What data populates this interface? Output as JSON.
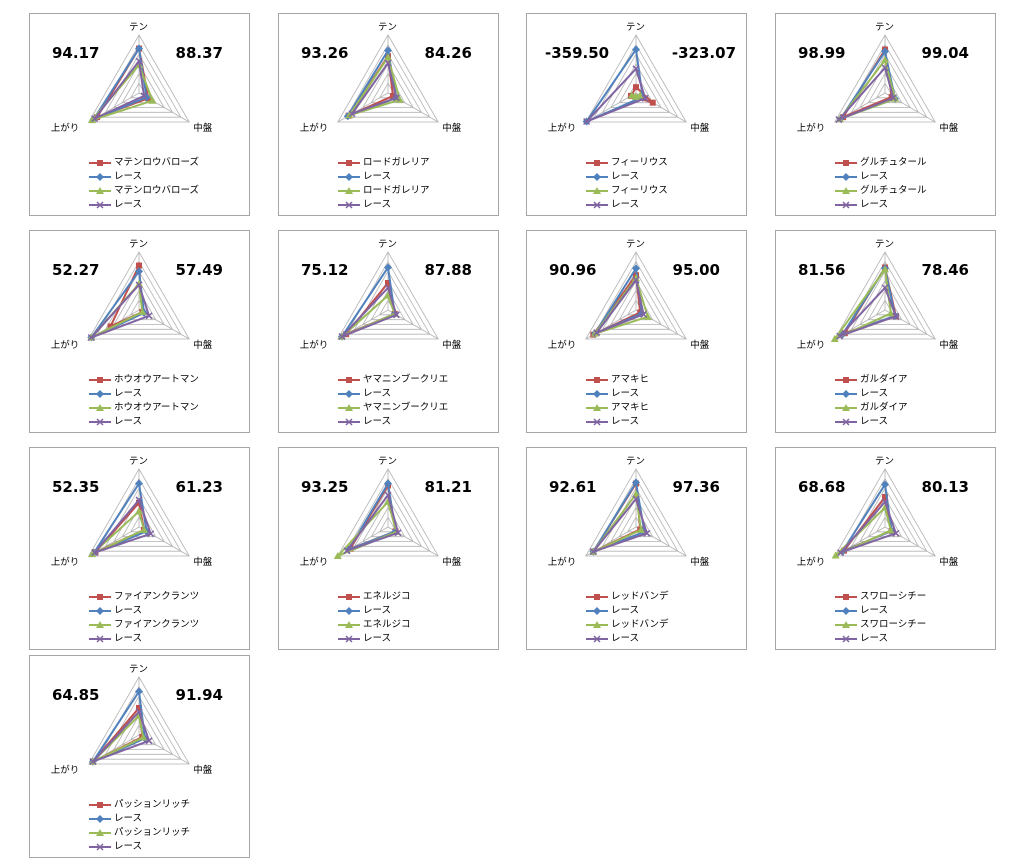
{
  "colors": {
    "red": "#c0504d",
    "blue": "#4f81bd",
    "green": "#9bbb59",
    "purple": "#8064a2",
    "grid": "#b3b3b3"
  },
  "axes": [
    "テン",
    "中盤",
    "上がり"
  ],
  "chart_data": [
    {
      "type": "radar",
      "left_value": "94.17",
      "right_value": "88.37",
      "axes": [
        "テン",
        "中盤",
        "上がり"
      ],
      "rmax": 6,
      "series": [
        {
          "name": "マテンロウバローズ",
          "marker": "square",
          "color": "#c0504d",
          "values": [
            4.6,
            1.1,
            5.0
          ]
        },
        {
          "name": "レース",
          "marker": "diamond",
          "color": "#4f81bd",
          "values": [
            4.6,
            0.9,
            5.4
          ]
        },
        {
          "name": "マテンロウバローズ",
          "marker": "triangle",
          "color": "#9bbb59",
          "values": [
            2.9,
            1.6,
            5.6
          ]
        },
        {
          "name": "レース",
          "marker": "x",
          "color": "#8064a2",
          "values": [
            3.3,
            0.6,
            5.3
          ]
        }
      ]
    },
    {
      "type": "radar",
      "left_value": "93.26",
      "right_value": "84.26",
      "axes": [
        "テン",
        "中盤",
        "上がり"
      ],
      "rmax": 6,
      "series": [
        {
          "name": "ロードガレリア",
          "marker": "square",
          "color": "#c0504d",
          "values": [
            3.8,
            0.6,
            4.7
          ]
        },
        {
          "name": "レース",
          "marker": "diamond",
          "color": "#4f81bd",
          "values": [
            4.4,
            1.0,
            4.8
          ]
        },
        {
          "name": "ロードガレリア",
          "marker": "triangle",
          "color": "#9bbb59",
          "values": [
            3.7,
            1.4,
            4.6
          ]
        },
        {
          "name": "レース",
          "marker": "x",
          "color": "#8064a2",
          "values": [
            3.1,
            1.0,
            4.3
          ]
        }
      ]
    },
    {
      "type": "radar",
      "left_value": "-359.50",
      "right_value": "-323.07",
      "axes": [
        "テン",
        "中盤",
        "上がり"
      ],
      "rmax": 6,
      "series": [
        {
          "name": "フィーリウス",
          "marker": "square",
          "color": "#c0504d",
          "values": [
            0.6,
            2.0,
            0.6
          ]
        },
        {
          "name": "レース",
          "marker": "diamond",
          "color": "#4f81bd",
          "values": [
            4.5,
            0.8,
            5.9
          ]
        },
        {
          "name": "フィーリウス",
          "marker": "triangle",
          "color": "#9bbb59",
          "values": [
            -0.4,
            0.5,
            0.5
          ]
        },
        {
          "name": "レース",
          "marker": "x",
          "color": "#8064a2",
          "values": [
            2.5,
            1.1,
            5.9
          ]
        }
      ]
    },
    {
      "type": "radar",
      "left_value": "98.99",
      "right_value": "99.04",
      "axes": [
        "テン",
        "中盤",
        "上がり"
      ],
      "rmax": 6,
      "series": [
        {
          "name": "グルチュタール",
          "marker": "square",
          "color": "#c0504d",
          "values": [
            4.5,
            0.8,
            5.0
          ]
        },
        {
          "name": "レース",
          "marker": "diamond",
          "color": "#4f81bd",
          "values": [
            4.3,
            1.2,
            5.3
          ]
        },
        {
          "name": "グルチュタール",
          "marker": "triangle",
          "color": "#9bbb59",
          "values": [
            3.4,
            1.2,
            5.4
          ]
        },
        {
          "name": "レース",
          "marker": "x",
          "color": "#8064a2",
          "values": [
            2.6,
            1.0,
            5.5
          ]
        }
      ]
    },
    {
      "type": "radar",
      "left_value": "52.27",
      "right_value": "57.49",
      "axes": [
        "テン",
        "中盤",
        "上がり"
      ],
      "rmax": 6,
      "series": [
        {
          "name": "ホウオウアートマン",
          "marker": "square",
          "color": "#c0504d",
          "values": [
            4.6,
            0.4,
            3.4
          ]
        },
        {
          "name": "レース",
          "marker": "diamond",
          "color": "#4f81bd",
          "values": [
            4.0,
            0.6,
            5.7
          ]
        },
        {
          "name": "ホウオウアートマン",
          "marker": "triangle",
          "color": "#9bbb59",
          "values": [
            2.7,
            0.4,
            5.7
          ]
        },
        {
          "name": "レース",
          "marker": "x",
          "color": "#8064a2",
          "values": [
            2.6,
            1.2,
            5.7
          ]
        }
      ]
    },
    {
      "type": "radar",
      "left_value": "75.12",
      "right_value": "87.88",
      "axes": [
        "テン",
        "中盤",
        "上がり"
      ],
      "rmax": 6,
      "series": [
        {
          "name": "ヤマニンブークリエ",
          "marker": "square",
          "color": "#c0504d",
          "values": [
            2.8,
            0.8,
            5.0
          ]
        },
        {
          "name": "レース",
          "marker": "diamond",
          "color": "#4f81bd",
          "values": [
            4.4,
            0.8,
            5.5
          ]
        },
        {
          "name": "ヤマニンブークリエ",
          "marker": "triangle",
          "color": "#9bbb59",
          "values": [
            1.5,
            0.8,
            5.5
          ]
        },
        {
          "name": "レース",
          "marker": "x",
          "color": "#8064a2",
          "values": [
            2.3,
            1.0,
            5.5
          ]
        }
      ]
    },
    {
      "type": "radar",
      "left_value": "90.96",
      "right_value": "95.00",
      "axes": [
        "テン",
        "中盤",
        "上がり"
      ],
      "rmax": 6,
      "series": [
        {
          "name": "アマキヒ",
          "marker": "square",
          "color": "#c0504d",
          "values": [
            3.6,
            0.5,
            5.1
          ]
        },
        {
          "name": "レース",
          "marker": "diamond",
          "color": "#4f81bd",
          "values": [
            4.3,
            0.7,
            4.9
          ]
        },
        {
          "name": "アマキヒ",
          "marker": "triangle",
          "color": "#9bbb59",
          "values": [
            3.3,
            1.4,
            4.9
          ]
        },
        {
          "name": "レース",
          "marker": "x",
          "color": "#8064a2",
          "values": [
            3.1,
            0.9,
            4.7
          ]
        }
      ]
    },
    {
      "type": "radar",
      "left_value": "81.56",
      "right_value": "78.46",
      "axes": [
        "テン",
        "中盤",
        "上がり"
      ],
      "rmax": 6,
      "series": [
        {
          "name": "ガルダイア",
          "marker": "square",
          "color": "#c0504d",
          "values": [
            4.4,
            1.3,
            4.8
          ]
        },
        {
          "name": "レース",
          "marker": "diamond",
          "color": "#4f81bd",
          "values": [
            4.3,
            1.2,
            5.1
          ]
        },
        {
          "name": "ガルダイア",
          "marker": "triangle",
          "color": "#9bbb59",
          "values": [
            4.2,
            0.7,
            6.0
          ]
        },
        {
          "name": "レース",
          "marker": "x",
          "color": "#8064a2",
          "values": [
            2.3,
            1.3,
            5.4
          ]
        }
      ]
    },
    {
      "type": "radar",
      "left_value": "52.35",
      "right_value": "61.23",
      "axes": [
        "テン",
        "中盤",
        "上がり"
      ],
      "rmax": 6,
      "series": [
        {
          "name": "ファイアンクランツ",
          "marker": "square",
          "color": "#c0504d",
          "values": [
            2.5,
            0.6,
            5.2
          ]
        },
        {
          "name": "レース",
          "marker": "diamond",
          "color": "#4f81bd",
          "values": [
            4.5,
            0.9,
            5.4
          ]
        },
        {
          "name": "ファイアンクランツ",
          "marker": "triangle",
          "color": "#9bbb59",
          "values": [
            1.6,
            0.6,
            5.6
          ]
        },
        {
          "name": "レース",
          "marker": "x",
          "color": "#8064a2",
          "values": [
            2.8,
            1.4,
            5.3
          ]
        }
      ]
    },
    {
      "type": "radar",
      "left_value": "93.25",
      "right_value": "81.21",
      "axes": [
        "テン",
        "中盤",
        "上がり"
      ],
      "rmax": 6,
      "series": [
        {
          "name": "エネルジコ",
          "marker": "square",
          "color": "#c0504d",
          "values": [
            4.3,
            0.9,
            4.5
          ]
        },
        {
          "name": "レース",
          "marker": "diamond",
          "color": "#4f81bd",
          "values": [
            4.5,
            0.9,
            4.7
          ]
        },
        {
          "name": "エネルジコ",
          "marker": "triangle",
          "color": "#9bbb59",
          "values": [
            2.6,
            1.0,
            6.0
          ]
        },
        {
          "name": "レース",
          "marker": "x",
          "color": "#8064a2",
          "values": [
            3.3,
            1.2,
            4.9
          ]
        }
      ]
    },
    {
      "type": "radar",
      "left_value": "92.61",
      "right_value": "97.36",
      "axes": [
        "テン",
        "中盤",
        "上がり"
      ],
      "rmax": 6,
      "series": [
        {
          "name": "レッドバンデ",
          "marker": "square",
          "color": "#c0504d",
          "values": [
            4.5,
            0.5,
            5.1
          ]
        },
        {
          "name": "レース",
          "marker": "diamond",
          "color": "#4f81bd",
          "values": [
            4.6,
            1.0,
            5.1
          ]
        },
        {
          "name": "レッドバンデ",
          "marker": "triangle",
          "color": "#9bbb59",
          "values": [
            3.4,
            0.6,
            5.1
          ]
        },
        {
          "name": "レース",
          "marker": "x",
          "color": "#8064a2",
          "values": [
            2.9,
            1.3,
            5.1
          ]
        }
      ]
    },
    {
      "type": "radar",
      "left_value": "68.68",
      "right_value": "80.13",
      "axes": [
        "テン",
        "中盤",
        "上がり"
      ],
      "rmax": 6,
      "series": [
        {
          "name": "スワローシチー",
          "marker": "square",
          "color": "#c0504d",
          "values": [
            3.1,
            0.8,
            4.9
          ]
        },
        {
          "name": "レース",
          "marker": "diamond",
          "color": "#4f81bd",
          "values": [
            4.4,
            0.8,
            5.1
          ]
        },
        {
          "name": "スワローシチー",
          "marker": "triangle",
          "color": "#9bbb59",
          "values": [
            2.0,
            0.7,
            5.9
          ]
        },
        {
          "name": "レース",
          "marker": "x",
          "color": "#8064a2",
          "values": [
            2.6,
            1.3,
            5.3
          ]
        }
      ]
    },
    {
      "type": "radar",
      "left_value": "64.85",
      "right_value": "91.94",
      "axes": [
        "テン",
        "中盤",
        "上がり"
      ],
      "rmax": 6,
      "series": [
        {
          "name": "パッションリッチ",
          "marker": "square",
          "color": "#c0504d",
          "values": [
            2.8,
            0.4,
            5.5
          ]
        },
        {
          "name": "レース",
          "marker": "diamond",
          "color": "#4f81bd",
          "values": [
            4.5,
            0.7,
            5.5
          ]
        },
        {
          "name": "パッションリッチ",
          "marker": "triangle",
          "color": "#9bbb59",
          "values": [
            2.0,
            0.5,
            5.5
          ]
        },
        {
          "name": "レース",
          "marker": "x",
          "color": "#8064a2",
          "values": [
            2.4,
            1.2,
            5.5
          ]
        }
      ]
    }
  ]
}
